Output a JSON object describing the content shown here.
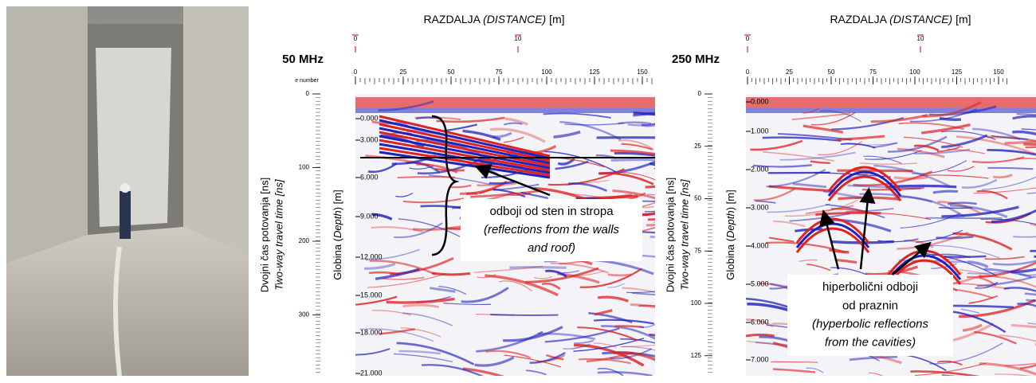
{
  "panels": [
    {
      "title": [
        "RAZDALJA ",
        "(DISTANCE)",
        " [m]"
      ],
      "frequency": "50 MHz",
      "trace_label": "e number",
      "markers": [
        0,
        10
      ],
      "distance_ticks": [
        0,
        25,
        50,
        75,
        100,
        125,
        150
      ],
      "time_ticks": [
        0,
        100,
        200,
        300
      ],
      "depth_ticks": [
        "0.000",
        "3.000",
        "6.000",
        "9.000",
        "12.000",
        "15.000",
        "18.000",
        "21.000"
      ],
      "time_title": "Dvojni čas potovanja [ns]",
      "time_title_en": "Two-way travel time [ns]",
      "depth_title": [
        "Globina (",
        "Depth",
        ") [m]"
      ],
      "annotation": [
        "odboji od sten in stropa",
        "(reflections from the walls",
        "and roof)"
      ]
    },
    {
      "title": [
        "RAZDALJA ",
        "(DISTANCE)",
        " [m]"
      ],
      "frequency": "250 MHz",
      "markers": [
        0,
        10
      ],
      "distance_ticks": [
        0,
        25,
        50,
        75,
        100,
        125,
        150
      ],
      "time_ticks": [
        0,
        25,
        50,
        75,
        100,
        125
      ],
      "depth_ticks": [
        "0.000",
        "1.000",
        "2.000",
        "3.000",
        "4.000",
        "5.000",
        "6.000",
        "7.000"
      ],
      "time_title": "Dvojni čas potovanja [ns]",
      "time_title_en": "Two-way travel time [ns]",
      "depth_title": [
        "Globina (",
        "Depth",
        ") [m]"
      ],
      "annotation": [
        "hiperbolični odboji",
        "od praznin",
        "(hyperbolic reflections",
        "from the cavities)"
      ]
    }
  ]
}
